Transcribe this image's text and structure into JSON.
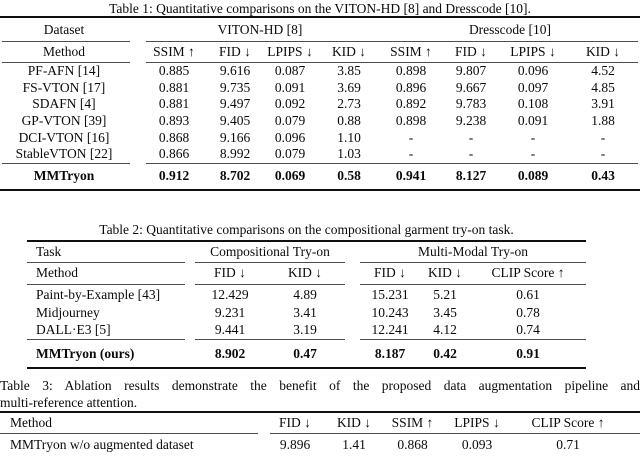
{
  "table1": {
    "caption": "Table 1: Quantitative comparisons on the VITON-HD [8] and Dresscode [10].",
    "col1_header": "Dataset",
    "col1_subheader": "Method",
    "groups": [
      {
        "label": "VITON-HD [8]"
      },
      {
        "label": "Dresscode [10]"
      }
    ],
    "metric_headers": [
      "SSIM ↑",
      "FID ↓",
      "LPIPS ↓",
      "KID ↓",
      "SSIM ↑",
      "FID ↓",
      "LPIPS ↓",
      "KID ↓"
    ],
    "rows": [
      {
        "method": "PF-AFN [14]",
        "values": [
          "0.885",
          "9.616",
          "0.087",
          "3.85",
          "0.898",
          "9.807",
          "0.096",
          "4.52"
        ]
      },
      {
        "method": "FS-VTON [17]",
        "values": [
          "0.881",
          "9.735",
          "0.091",
          "3.69",
          "0.896",
          "9.667",
          "0.097",
          "4.85"
        ]
      },
      {
        "method": "SDAFN [4]",
        "values": [
          "0.881",
          "9.497",
          "0.092",
          "2.73",
          "0.892",
          "9.783",
          "0.108",
          "3.91"
        ]
      },
      {
        "method": "GP-VTON [39]",
        "values": [
          "0.893",
          "9.405",
          "0.079",
          "0.88",
          "0.898",
          "9.238",
          "0.091",
          "1.88"
        ]
      },
      {
        "method": "DCI-VTON [16]",
        "values": [
          "0.868",
          "9.166",
          "0.096",
          "1.10",
          "-",
          "-",
          "-",
          "-"
        ]
      },
      {
        "method": "StableVTON [22]",
        "values": [
          "0.866",
          "8.992",
          "0.079",
          "1.03",
          "-",
          "-",
          "-",
          "-"
        ]
      }
    ],
    "best_row": {
      "method": "MMTryon",
      "values": [
        "0.912",
        "8.702",
        "0.069",
        "0.58",
        "0.941",
        "8.127",
        "0.089",
        "0.43"
      ]
    }
  },
  "table2": {
    "caption": "Table 2: Quantitative comparisons on the compositional garment try-on task.",
    "col1_header": "Task",
    "col1_subheader": "Method",
    "groups": [
      {
        "label": "Compositional Try-on"
      },
      {
        "label": "Multi-Modal Try-on"
      }
    ],
    "metric_headers": [
      "FID ↓",
      "KID ↓",
      "FID ↓",
      "KID ↓",
      "CLIP Score ↑"
    ],
    "rows": [
      {
        "method": "Paint-by-Example [43]",
        "values": [
          "12.429",
          "4.89",
          "15.231",
          "5.21",
          "0.61"
        ]
      },
      {
        "method": "Midjourney",
        "values": [
          "9.231",
          "3.41",
          "10.243",
          "3.45",
          "0.78"
        ]
      },
      {
        "method": "DALL·E3 [5]",
        "values": [
          "9.441",
          "3.19",
          "12.241",
          "4.12",
          "0.74"
        ]
      }
    ],
    "best_row": {
      "method": "MMTryon (ours)",
      "values": [
        "8.902",
        "0.47",
        "8.187",
        "0.42",
        "0.91"
      ]
    }
  },
  "table3": {
    "caption_line1": "Table 3: Ablation results demonstrate the benefit of the proposed data augmentation pipeline and",
    "caption_line2": "multi-reference attention.",
    "col1_header": "Method",
    "metric_headers": [
      "FID ↓",
      "KID ↓",
      "SSIM ↑",
      "LPIPS ↓",
      "CLIP Score ↑"
    ],
    "rows": [
      {
        "method": "MMTryon w/o augmented dataset",
        "values": [
          "9.896",
          "1.41",
          "0.868",
          "0.093",
          "0.71"
        ]
      }
    ]
  }
}
